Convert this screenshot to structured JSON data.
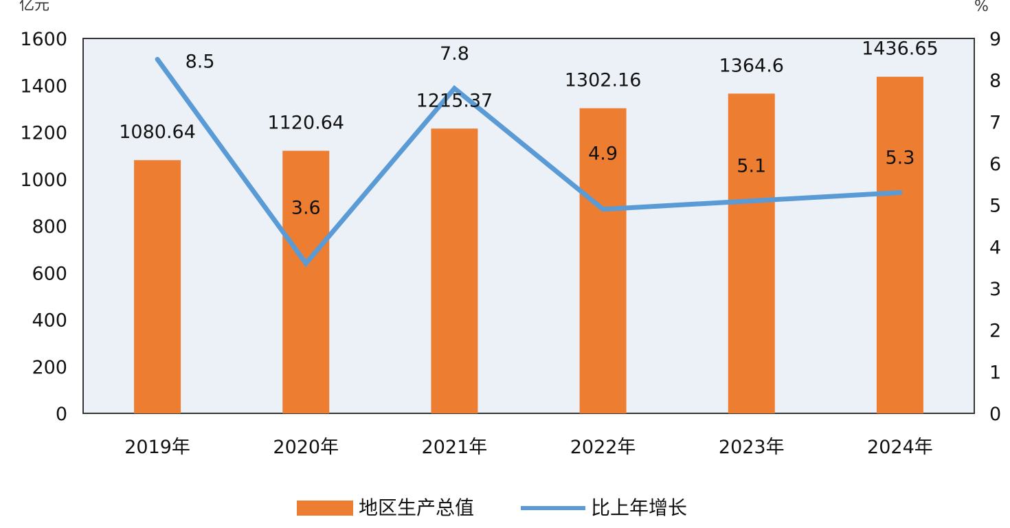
{
  "chart_data": {
    "type": "bar",
    "categories": [
      "2019年",
      "2020年",
      "2021年",
      "2022年",
      "2023年",
      "2024年"
    ],
    "y_left_unit": "亿元",
    "y_right_unit": "%",
    "y_left_range": [
      0,
      1600
    ],
    "y_left_ticks": [
      "0",
      "200",
      "400",
      "600",
      "800",
      "1000",
      "1200",
      "1400",
      "1600"
    ],
    "y_right_range": [
      0,
      9
    ],
    "y_right_ticks": [
      "0",
      "1",
      "2",
      "3",
      "4",
      "5",
      "6",
      "7",
      "8",
      "9"
    ],
    "series": [
      {
        "name": "地区生产总值",
        "type": "bar",
        "axis": "left",
        "color": "#ED7D31",
        "values": [
          1080.64,
          1120.64,
          1215.37,
          1302.16,
          1364.6,
          1436.65
        ],
        "labels": [
          "1080.64",
          "1120.64",
          "1215.37",
          "1302.16",
          "1364.6",
          "1436.65"
        ]
      },
      {
        "name": "比上年增长",
        "type": "line",
        "axis": "right",
        "color": "#5B9BD5",
        "values": [
          8.5,
          3.6,
          7.8,
          4.9,
          5.1,
          5.3
        ],
        "labels": [
          "8.5",
          "3.6",
          "7.8",
          "4.9",
          "5.1",
          "5.3"
        ]
      }
    ],
    "legend_position": "bottom",
    "grid": false
  }
}
